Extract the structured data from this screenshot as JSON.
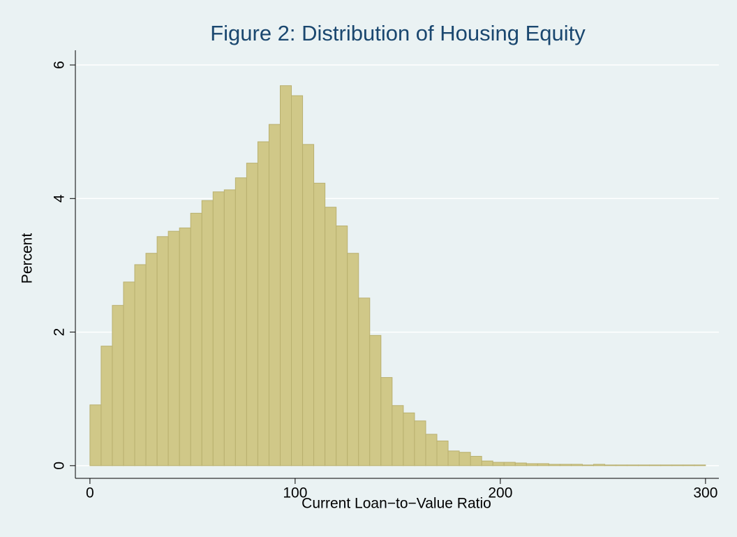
{
  "chart_data": {
    "type": "histogram",
    "title": "Figure 2: Distribution of Housing Equity",
    "x_label": "Current Loan−to−Value Ratio",
    "y_label": "Percent",
    "bins": [
      0,
      5.45,
      10.91,
      16.36,
      21.82,
      27.27,
      32.73,
      38.18,
      43.64,
      49.09,
      54.55,
      60,
      65.45,
      70.91,
      76.36,
      81.82,
      87.27,
      92.73,
      98.18,
      103.64,
      109.09,
      114.55,
      120,
      125.45,
      130.91,
      136.36,
      141.82,
      147.27,
      152.73,
      158.18,
      163.64,
      169.09,
      174.55,
      180,
      185.45,
      190.91,
      196.36,
      201.82,
      207.27,
      212.73,
      218.18,
      223.64,
      229.09,
      234.55,
      240,
      245.45,
      250.91,
      256.36,
      261.82,
      267.27,
      272.73,
      278.18,
      283.64,
      289.09,
      294.55,
      300
    ],
    "values": [
      0.91,
      1.79,
      2.4,
      2.75,
      3.01,
      3.18,
      3.43,
      3.51,
      3.56,
      3.78,
      3.97,
      4.1,
      4.13,
      4.31,
      4.53,
      4.85,
      5.11,
      5.69,
      5.54,
      4.81,
      4.23,
      3.87,
      3.59,
      3.18,
      2.51,
      1.95,
      1.32,
      0.9,
      0.79,
      0.67,
      0.47,
      0.37,
      0.22,
      0.2,
      0.14,
      0.07,
      0.05,
      0.05,
      0.04,
      0.03,
      0.03,
      0.02,
      0.02,
      0.02,
      0.01,
      0.02,
      0.01,
      0.01,
      0.01,
      0.01,
      0.01,
      0.01,
      0.01,
      0.01,
      0.01
    ],
    "color": "#d0c888",
    "xlim": [
      -7.1,
      306.5
    ],
    "xticks": [
      0,
      100,
      200,
      300
    ],
    "ylim": [
      -0.19,
      6.22
    ],
    "yticks": [
      0,
      2,
      4,
      6
    ],
    "grid": true
  }
}
